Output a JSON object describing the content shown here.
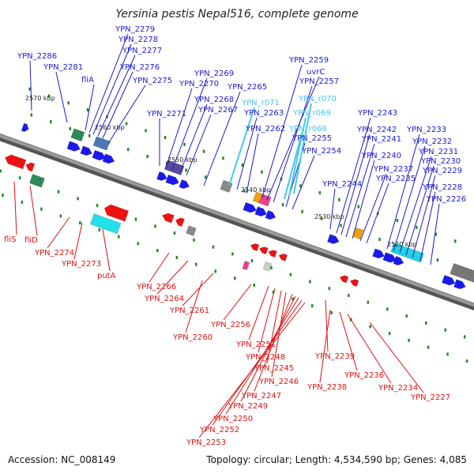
{
  "title": "Yersinia pestis Nepal516, complete genome",
  "accession": "Accession: NC_008149",
  "topology": "Topology: circular; Length: 4,534,590 bp; Genes: 4,085",
  "colors": {
    "forward_label": "#1a1acc",
    "rna_label": "#44c8e8",
    "reverse_label": "#dd1111",
    "backbone": "#7a7a7a",
    "forward_gene": "#1a1aee",
    "reverse_gene": "#ee1111",
    "tick": "#1f8a1f"
  },
  "ruler_ticks": [
    {
      "label": "2570 kbp"
    },
    {
      "label": "2560 kbp"
    },
    {
      "label": "2550 kbp"
    },
    {
      "label": "2540 kbp"
    },
    {
      "label": "2530 kbp"
    },
    {
      "label": "2520 kbp"
    }
  ],
  "forward_labels": [
    "YPN_2286",
    "YPN_2281",
    "fliA",
    "YPN_2279",
    "YPN_2278",
    "YPN_2277",
    "YPN_2276",
    "YPN_2275",
    "YPN_2271",
    "YPN_2270",
    "YPN_2269",
    "YPN_2268",
    "YPN_2267",
    "YPN_2265",
    "YPN_2263",
    "YPN_2262",
    "YPN_2259",
    "uvrC",
    "YPN_2257",
    "YPN_2255",
    "YPN_2254",
    "YPN_2244",
    "YPN_2243",
    "YPN_2242",
    "YPN_2241",
    "YPN_2240",
    "YPN_2237",
    "YPN_2235",
    "YPN_2233",
    "YPN_2232",
    "YPN_2231",
    "YPN_2230",
    "YPN_2229",
    "YPN_2228",
    "YPN_2226"
  ],
  "rna_labels": [
    "YPN_r071",
    "YPN_r070",
    "YPN_r069",
    "YPN_r068"
  ],
  "reverse_labels": [
    "fliS",
    "fliD",
    "YPN_2274",
    "YPN_2273",
    "putA",
    "YPN_2266",
    "YPN_2264",
    "YPN_2261",
    "YPN_2260",
    "YPN_2256",
    "YPN_2251",
    "YPN_2248",
    "YPN_2245",
    "YPN_2246",
    "YPN_2247",
    "YPN_2249",
    "YPN_2250",
    "YPN_2252",
    "YPN_2253",
    "YPN_2239",
    "YPN_2238",
    "YPN_2236",
    "YPN_2234",
    "YPN_2227"
  ]
}
